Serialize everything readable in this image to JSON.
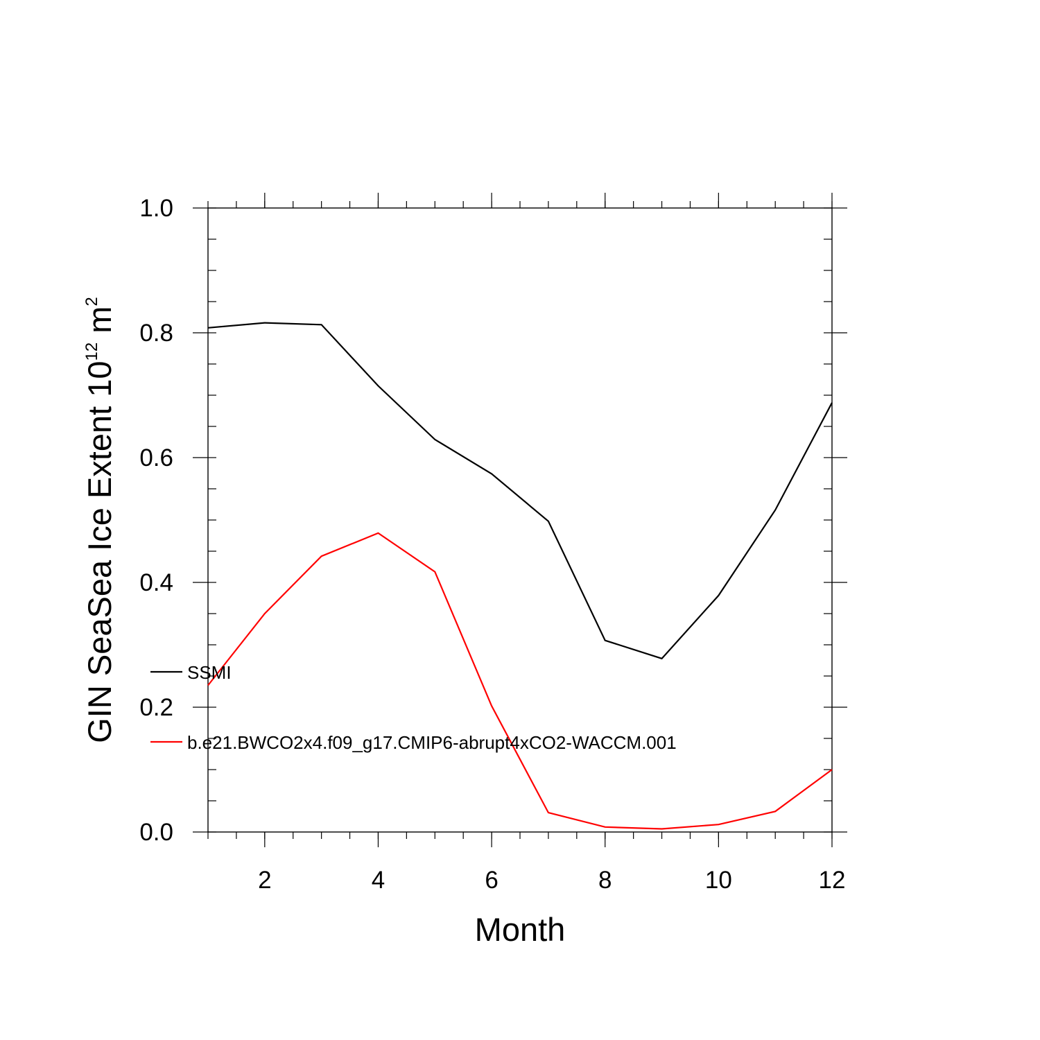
{
  "chart_data": {
    "type": "line",
    "x": [
      1,
      2,
      3,
      4,
      5,
      6,
      7,
      8,
      9,
      10,
      11,
      12
    ],
    "series": [
      {
        "name": "SSMI",
        "color": "#000000",
        "values": [
          0.808,
          0.816,
          0.813,
          0.715,
          0.629,
          0.574,
          0.498,
          0.307,
          0.278,
          0.379,
          0.516,
          0.688
        ]
      },
      {
        "name": "b.e21.BWCO2x4.f09_g17.CMIP6-abrupt4xCO2-WACCM.001",
        "color": "#ff0000",
        "values": [
          0.235,
          0.35,
          0.442,
          0.479,
          0.417,
          0.202,
          0.031,
          0.008,
          0.005,
          0.012,
          0.033,
          0.1
        ]
      }
    ],
    "xlabel": "Month",
    "ylabel": {
      "text": "GIN SeaSea Ice Extent 10",
      "superscript": "12",
      "unit": " m",
      "unit_superscript": "2"
    },
    "xlim": [
      1,
      12
    ],
    "ylim": [
      0,
      1
    ],
    "x_ticks": [
      2,
      4,
      6,
      8,
      10,
      12
    ],
    "y_ticks": [
      "0.0",
      "0.2",
      "0.4",
      "0.6",
      "0.8",
      "1.0"
    ],
    "grid": false,
    "legend_position": "lower-left"
  }
}
